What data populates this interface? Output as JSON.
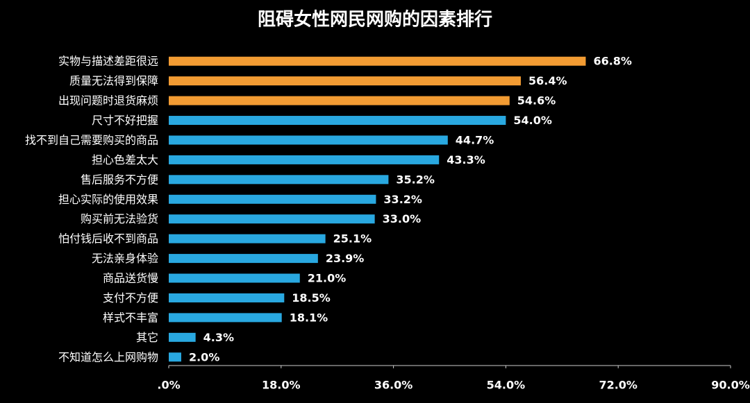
{
  "chart_data": {
    "type": "barh",
    "title": "阻碍女性网民网购的因素排行",
    "categories": [
      "实物与描述差距很远",
      "质量无法得到保障",
      "出现问题时退货麻烦",
      "尺寸不好把握",
      "找不到自己需要购买的商品",
      "担心色差太大",
      "售后服务不方便",
      "担心实际的使用效果",
      "购买前无法验货",
      "怕付钱后收不到商品",
      "无法亲身体验",
      "商品送货慢",
      "支付不方便",
      "样式不丰富",
      "其它",
      "不知道怎么上网购物"
    ],
    "values": [
      66.8,
      56.4,
      54.6,
      54.0,
      44.7,
      43.3,
      35.2,
      33.2,
      33.0,
      25.1,
      23.9,
      21.0,
      18.5,
      18.1,
      4.3,
      2.0
    ],
    "value_labels": [
      "66.8%",
      "56.4%",
      "54.6%",
      "54.0%",
      "44.7%",
      "43.3%",
      "35.2%",
      "33.2%",
      "33.0%",
      "25.1%",
      "23.9%",
      "21.0%",
      "18.5%",
      "18.1%",
      "4.3%",
      "2.0%"
    ],
    "colors": [
      "#f39c33",
      "#f39c33",
      "#f39c33",
      "#29a8e0",
      "#29a8e0",
      "#29a8e0",
      "#29a8e0",
      "#29a8e0",
      "#29a8e0",
      "#29a8e0",
      "#29a8e0",
      "#29a8e0",
      "#29a8e0",
      "#29a8e0",
      "#29a8e0",
      "#29a8e0"
    ],
    "xlim": [
      0,
      90
    ],
    "xticks": [
      {
        "value": 0,
        "label": ".0%"
      },
      {
        "value": 18,
        "label": "18.0%"
      },
      {
        "value": 36,
        "label": "36.0%"
      },
      {
        "value": 54,
        "label": "54.0%"
      },
      {
        "value": 72,
        "label": "72.0%"
      },
      {
        "value": 90,
        "label": "90.0%"
      }
    ]
  }
}
